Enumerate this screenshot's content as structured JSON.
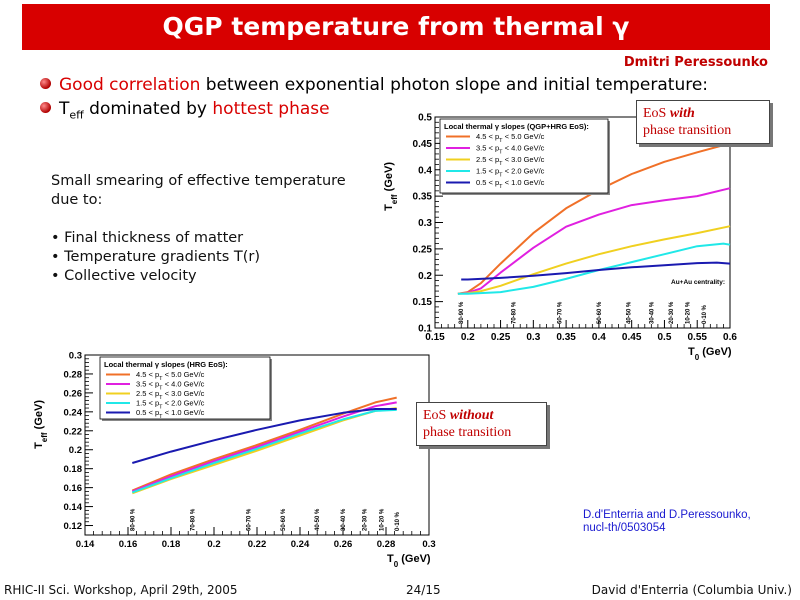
{
  "slide": {
    "title": "QGP temperature from thermal γ",
    "author": "Dmitri Peressounko",
    "bullets": [
      {
        "highlight": "Good correlation",
        "rest": " between exponential photon slope and initial temperature:"
      },
      {
        "pre": "T",
        "sub": "eff",
        "mid": " dominated by ",
        "highlight": "hottest phase"
      }
    ],
    "smearing": {
      "line1": "Small smearing of effective temperature",
      "line2": "due to:",
      "items": [
        "• Final thickness of matter",
        "• Temperature gradients T(r)",
        "• Collective velocity"
      ]
    },
    "eos_with": {
      "l1a": "EoS ",
      "l1b": "with",
      "l2": "phase transition"
    },
    "eos_without": {
      "l1a": "EoS ",
      "l1b": "without",
      "l2": "phase transition"
    },
    "reference": {
      "l1": "D.d'Enterria and D.Peressounko,",
      "l2": "nucl-th/0503054"
    },
    "footer": {
      "left": "RHIC-II Sci. Workshop, April 29th, 2005",
      "center": "24/15",
      "right": "David d'Enterria (Columbia Univ.)"
    }
  },
  "chart_data": [
    {
      "type": "line",
      "legend_title": "Local thermal γ slopes (QGP+HRG EoS):",
      "xlabel_main": "T",
      "xlabel_sub": "0",
      "xlabel_unit": " (GeV)",
      "ylabel_main": "T",
      "ylabel_sub": "eff",
      "ylabel_unit": " (GeV)",
      "xlim": [
        0.15,
        0.6
      ],
      "ylim": [
        0.1,
        0.5
      ],
      "xticks": [
        0.15,
        0.2,
        0.25,
        0.3,
        0.35,
        0.4,
        0.45,
        0.5,
        0.55,
        0.6
      ],
      "xtick_labels": [
        "0.15",
        "0.2",
        "0.25",
        "0.3",
        "0.35",
        "0.4",
        "0.45",
        "0.5",
        "0.55",
        "0.6"
      ],
      "yticks": [
        0.1,
        0.15,
        0.2,
        0.25,
        0.3,
        0.35,
        0.4,
        0.45,
        0.5
      ],
      "ytick_labels": [
        "0.1",
        "0.15",
        "0.2",
        "0.25",
        "0.3",
        "0.35",
        "0.4",
        "0.45",
        "0.5"
      ],
      "centrality_title": "Au+Au centrality:",
      "centralities": [
        {
          "label": "80-90 %",
          "x": 0.19
        },
        {
          "label": "70-80 %",
          "x": 0.27
        },
        {
          "label": "60-70 %",
          "x": 0.34
        },
        {
          "label": "50-60 %",
          "x": 0.4
        },
        {
          "label": "40-50 %",
          "x": 0.445
        },
        {
          "label": "30-40 %",
          "x": 0.48
        },
        {
          "label": "20-30 %",
          "x": 0.51
        },
        {
          "label": "10-20 %",
          "x": 0.535
        },
        {
          "label": "0-10 %",
          "x": 0.56
        }
      ],
      "series": [
        {
          "name": "4.5 < p_T < 5.0 GeV/c",
          "color": "#f07028",
          "x": [
            0.185,
            0.2,
            0.22,
            0.25,
            0.3,
            0.35,
            0.4,
            0.45,
            0.5,
            0.55,
            0.6
          ],
          "y": [
            0.165,
            0.168,
            0.185,
            0.222,
            0.28,
            0.327,
            0.362,
            0.392,
            0.415,
            0.433,
            0.45
          ]
        },
        {
          "name": "3.5 < p_T < 4.0 GeV/c",
          "color": "#e020e0",
          "x": [
            0.185,
            0.2,
            0.22,
            0.25,
            0.3,
            0.35,
            0.4,
            0.45,
            0.5,
            0.55,
            0.6
          ],
          "y": [
            0.165,
            0.167,
            0.175,
            0.205,
            0.252,
            0.292,
            0.315,
            0.333,
            0.342,
            0.35,
            0.365
          ]
        },
        {
          "name": "2.5 < p_T < 3.0 GeV/c",
          "color": "#f0d020",
          "x": [
            0.185,
            0.2,
            0.22,
            0.25,
            0.3,
            0.35,
            0.4,
            0.45,
            0.5,
            0.55,
            0.6
          ],
          "y": [
            0.165,
            0.166,
            0.17,
            0.18,
            0.202,
            0.222,
            0.24,
            0.255,
            0.268,
            0.28,
            0.293
          ]
        },
        {
          "name": "1.5 < p_T < 2.0 GeV/c",
          "color": "#20e8e8",
          "x": [
            0.185,
            0.2,
            0.25,
            0.3,
            0.35,
            0.4,
            0.45,
            0.5,
            0.55,
            0.59,
            0.6
          ],
          "y": [
            0.165,
            0.165,
            0.168,
            0.178,
            0.193,
            0.21,
            0.225,
            0.24,
            0.255,
            0.26,
            0.258
          ]
        },
        {
          "name": "0.5 < p_T < 1.0 GeV/c",
          "color": "#1a1ab0",
          "x": [
            0.19,
            0.2,
            0.25,
            0.3,
            0.35,
            0.4,
            0.45,
            0.5,
            0.55,
            0.58,
            0.6
          ],
          "y": [
            0.192,
            0.192,
            0.195,
            0.199,
            0.204,
            0.21,
            0.215,
            0.219,
            0.223,
            0.224,
            0.222
          ]
        }
      ]
    },
    {
      "type": "line",
      "legend_title": "Local thermal γ slopes (HRG EoS):",
      "xlabel_main": "T",
      "xlabel_sub": "0",
      "xlabel_unit": " (GeV)",
      "ylabel_main": "T",
      "ylabel_sub": "eff",
      "ylabel_unit": " (GeV)",
      "xlim": [
        0.14,
        0.3
      ],
      "ylim": [
        0.11,
        0.3
      ],
      "xticks": [
        0.14,
        0.16,
        0.18,
        0.2,
        0.22,
        0.24,
        0.26,
        0.28,
        0.3
      ],
      "xtick_labels": [
        "0.14",
        "0.16",
        "0.18",
        "0.2",
        "0.22",
        "0.24",
        "0.26",
        "0.28",
        "0.3"
      ],
      "yticks": [
        0.12,
        0.14,
        0.16,
        0.18,
        0.2,
        0.22,
        0.24,
        0.26,
        0.28,
        0.3
      ],
      "ytick_labels": [
        "0.12",
        "0.14",
        "0.16",
        "0.18",
        "0.2",
        "0.22",
        "0.24",
        "0.26",
        "0.28",
        "0.3"
      ],
      "centralities": [
        {
          "label": "80-90 %",
          "x": 0.162
        },
        {
          "label": "70-80 %",
          "x": 0.19
        },
        {
          "label": "60-70 %",
          "x": 0.216
        },
        {
          "label": "50-60 %",
          "x": 0.232
        },
        {
          "label": "40-50 %",
          "x": 0.248
        },
        {
          "label": "30-40 %",
          "x": 0.26
        },
        {
          "label": "20-30 %",
          "x": 0.27
        },
        {
          "label": "10-20 %",
          "x": 0.278
        },
        {
          "label": "0-10 %",
          "x": 0.285
        }
      ],
      "series": [
        {
          "name": "4.5 < p_T < 5.0 GeV/c",
          "color": "#f07028",
          "x": [
            0.162,
            0.18,
            0.2,
            0.22,
            0.24,
            0.26,
            0.275,
            0.285
          ],
          "y": [
            0.157,
            0.174,
            0.19,
            0.205,
            0.221,
            0.238,
            0.25,
            0.255
          ]
        },
        {
          "name": "3.5 < p_T < 4.0 GeV/c",
          "color": "#e020e0",
          "x": [
            0.162,
            0.18,
            0.2,
            0.22,
            0.24,
            0.26,
            0.275,
            0.285
          ],
          "y": [
            0.156,
            0.172,
            0.188,
            0.203,
            0.219,
            0.235,
            0.246,
            0.25
          ]
        },
        {
          "name": "2.5 < p_T < 3.0 GeV/c",
          "color": "#f0d020",
          "x": [
            0.162,
            0.18,
            0.2,
            0.22,
            0.24,
            0.26,
            0.275,
            0.285
          ],
          "y": [
            0.154,
            0.169,
            0.184,
            0.199,
            0.215,
            0.231,
            0.241,
            0.244
          ]
        },
        {
          "name": "1.5 < p_T < 2.0 GeV/c",
          "color": "#20e8e8",
          "x": [
            0.162,
            0.18,
            0.2,
            0.22,
            0.24,
            0.26,
            0.275,
            0.285
          ],
          "y": [
            0.155,
            0.17,
            0.186,
            0.201,
            0.217,
            0.232,
            0.241,
            0.242
          ]
        },
        {
          "name": "0.5 < p_T < 1.0 GeV/c",
          "color": "#1a1ab0",
          "x": [
            0.162,
            0.18,
            0.2,
            0.22,
            0.24,
            0.26,
            0.275,
            0.285
          ],
          "y": [
            0.186,
            0.198,
            0.21,
            0.221,
            0.231,
            0.239,
            0.243,
            0.243
          ]
        }
      ]
    }
  ]
}
